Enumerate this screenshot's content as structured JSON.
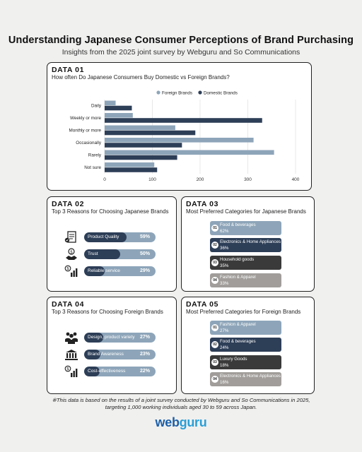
{
  "header": {
    "title": "Understanding Japanese Consumer Perceptions of Brand Purchasing",
    "subtitle": "Insights from the 2025 joint survey by Webguru and So Communications"
  },
  "sections": [
    {
      "tag": "DATA 01",
      "question": "How often Do Japanese Consumers Buy Domestic vs Foreign Brands?"
    },
    {
      "tag": "DATA 02",
      "question": "Top 3 Reasons for Choosing Japanese Brands"
    },
    {
      "tag": "DATA 03",
      "question": "Most Preferred Categories for Japanese Brands"
    },
    {
      "tag": "DATA 04",
      "question": "Top 3 Reasons for Choosing Foreign Brands"
    },
    {
      "tag": "DATA 05",
      "question": "Most Preferred Categories for Foreign Brands"
    }
  ],
  "colors": {
    "foreign": "#8ea5b9",
    "domestic": "#2d3e57",
    "dark": "#3a3a3a",
    "grey": "#a09d9a"
  },
  "chart_data": {
    "type": "bar",
    "orientation": "horizontal",
    "categories": [
      "Daily",
      "Weekly or more",
      "Monthly or more",
      "Occasionally",
      "Rarely",
      "Not sure"
    ],
    "series": [
      {
        "name": "Foreign Brands",
        "values": [
          23,
          59,
          148,
          312,
          355,
          104
        ]
      },
      {
        "name": "Domestic Brands",
        "values": [
          57,
          330,
          190,
          162,
          152,
          110
        ]
      }
    ],
    "xticks": [
      "0",
      "100",
      "200",
      "300",
      "400"
    ],
    "xlim": [
      0,
      400
    ],
    "legend": "top-right",
    "grid": true
  },
  "reasons_jp": [
    {
      "label": "Product Quality",
      "pct": "59%",
      "value": 59,
      "icon": "quality-checklist-icon"
    },
    {
      "label": "Trust",
      "pct": "50%",
      "value": 50,
      "icon": "handshake-icon"
    },
    {
      "label": "Reliable service",
      "pct": "29%",
      "value": 29,
      "icon": "money-growth-icon"
    }
  ],
  "categories_jp": [
    {
      "num": "01",
      "name": "Food & beverages",
      "pct": "62%",
      "color": "#8ea5b9"
    },
    {
      "num": "02",
      "name": "Electronics & Home Appliances",
      "pct": "36%",
      "color": "#2d3e57"
    },
    {
      "num": "03",
      "name": "Household goods",
      "pct": "35%",
      "color": "#3a3a3a"
    },
    {
      "num": "04",
      "name": "Fashion & Apparel",
      "pct": "33%",
      "color": "#a09d9a"
    }
  ],
  "reasons_foreign": [
    {
      "label": "Design, product variety",
      "pct": "27%",
      "value": 27,
      "icon": "people-group-icon"
    },
    {
      "label": "Brand Awareness",
      "pct": "23%",
      "value": 23,
      "icon": "building-icon"
    },
    {
      "label": "Cost-effectiveness",
      "pct": "22%",
      "value": 22,
      "icon": "money-growth-icon"
    }
  ],
  "categories_foreign": [
    {
      "num": "01",
      "name": "Fashion & Apparel",
      "pct": "27%",
      "color": "#8ea5b9"
    },
    {
      "num": "02",
      "name": "Food & beverages",
      "pct": "24%",
      "color": "#2d3e57"
    },
    {
      "num": "03",
      "name": "Luxury Goods",
      "pct": "18%",
      "color": "#3a3a3a"
    },
    {
      "num": "04",
      "name": "Electronics & Home Appliances",
      "pct": "16%",
      "color": "#a09d9a"
    }
  ],
  "footnote": {
    "line1": "※This data is based on the results of a joint survey conducted by Webguru and So Communications in 2025,",
    "line2": "targeting 1,000 working individuals aged 30 to 59 across Japan."
  },
  "logo": {
    "part1": "web",
    "part2": "guru"
  }
}
